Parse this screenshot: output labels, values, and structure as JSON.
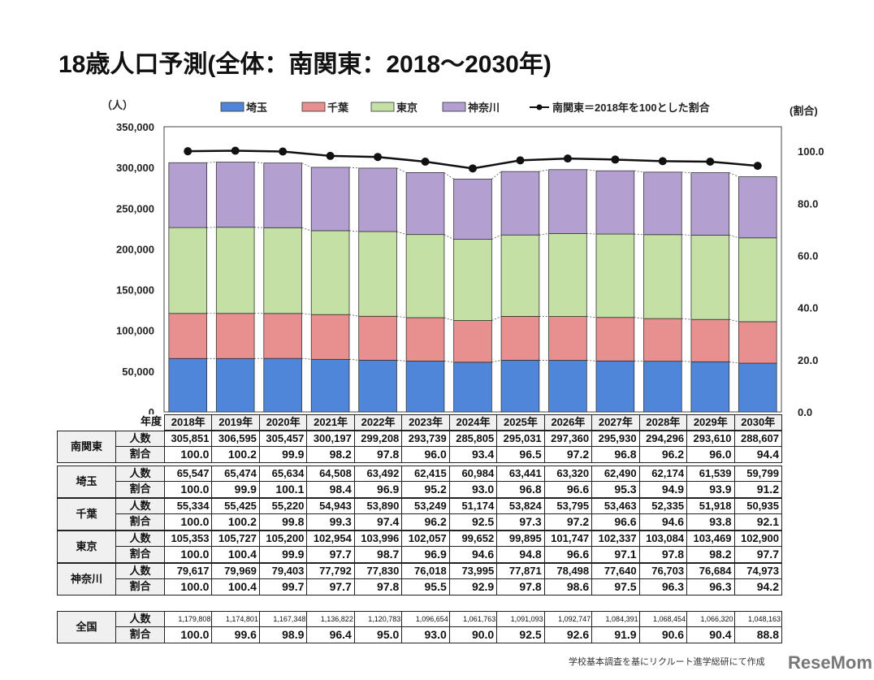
{
  "title": "18歳人口予測(全体：南関東：2018～2030年)",
  "chart_data": {
    "type": "bar",
    "stacked": true,
    "title": "18歳人口予測(全体：南関東：2018～2030年)",
    "ylabel": "（人）",
    "y2label": "(割合)",
    "ylim": [
      0,
      350000
    ],
    "y2lim": [
      0,
      109.4
    ],
    "yticks": [
      "0",
      "50,000",
      "100,000",
      "150,000",
      "200,000",
      "250,000",
      "300,000",
      "350,000"
    ],
    "y2ticks": [
      "0.0",
      "20.0",
      "40.0",
      "60.0",
      "80.0",
      "100.0"
    ],
    "legend_position": "top",
    "categories": [
      "2018年",
      "2019年",
      "2020年",
      "2021年",
      "2022年",
      "2023年",
      "2024年",
      "2025年",
      "2026年",
      "2027年",
      "2028年",
      "2029年",
      "2030年"
    ],
    "series": [
      {
        "name": "埼玉",
        "color": "#4f86d9",
        "values": [
          65547,
          65474,
          65634,
          64508,
          63492,
          62415,
          60984,
          63441,
          63320,
          62490,
          62174,
          61539,
          59799
        ]
      },
      {
        "name": "千葉",
        "color": "#e8908f",
        "values": [
          55334,
          55425,
          55220,
          54943,
          53890,
          53249,
          51174,
          53824,
          53795,
          53463,
          52335,
          51918,
          50935
        ]
      },
      {
        "name": "東京",
        "color": "#c4e0a4",
        "values": [
          105353,
          105727,
          105200,
          102954,
          103996,
          102057,
          99652,
          99895,
          101747,
          102337,
          103084,
          103469,
          102900
        ]
      },
      {
        "name": "神奈川",
        "color": "#b49fd1",
        "values": [
          79617,
          79969,
          79403,
          77792,
          77830,
          76018,
          73995,
          77871,
          78498,
          77640,
          76703,
          76684,
          74973
        ]
      }
    ],
    "line": {
      "name": "南関東＝2018年を100とした割合",
      "color": "#111111",
      "axis": "right",
      "values": [
        100.0,
        100.2,
        99.9,
        98.2,
        97.8,
        96.0,
        93.4,
        96.5,
        97.2,
        96.8,
        96.2,
        96.0,
        94.4
      ]
    }
  },
  "table": {
    "year_header": "年度",
    "count_label": "人数",
    "ratio_label": "割合",
    "rows": [
      {
        "region": "南関東",
        "counts": [
          "305,851",
          "306,595",
          "305,457",
          "300,197",
          "299,208",
          "293,739",
          "285,805",
          "295,031",
          "297,360",
          "295,930",
          "294,296",
          "293,610",
          "288,607"
        ],
        "ratios": [
          "100.0",
          "100.2",
          "99.9",
          "98.2",
          "97.8",
          "96.0",
          "93.4",
          "96.5",
          "97.2",
          "96.8",
          "96.2",
          "96.0",
          "94.4"
        ]
      },
      {
        "region": "埼玉",
        "counts": [
          "65,547",
          "65,474",
          "65,634",
          "64,508",
          "63,492",
          "62,415",
          "60,984",
          "63,441",
          "63,320",
          "62,490",
          "62,174",
          "61,539",
          "59,799"
        ],
        "ratios": [
          "100.0",
          "99.9",
          "100.1",
          "98.4",
          "96.9",
          "95.2",
          "93.0",
          "96.8",
          "96.6",
          "95.3",
          "94.9",
          "93.9",
          "91.2"
        ]
      },
      {
        "region": "千葉",
        "counts": [
          "55,334",
          "55,425",
          "55,220",
          "54,943",
          "53,890",
          "53,249",
          "51,174",
          "53,824",
          "53,795",
          "53,463",
          "52,335",
          "51,918",
          "50,935"
        ],
        "ratios": [
          "100.0",
          "100.2",
          "99.8",
          "99.3",
          "97.4",
          "96.2",
          "92.5",
          "97.3",
          "97.2",
          "96.6",
          "94.6",
          "93.8",
          "92.1"
        ]
      },
      {
        "region": "東京",
        "counts": [
          "105,353",
          "105,727",
          "105,200",
          "102,954",
          "103,996",
          "102,057",
          "99,652",
          "99,895",
          "101,747",
          "102,337",
          "103,084",
          "103,469",
          "102,900"
        ],
        "ratios": [
          "100.0",
          "100.4",
          "99.9",
          "97.7",
          "98.7",
          "96.9",
          "94.6",
          "94.8",
          "96.6",
          "97.1",
          "97.8",
          "98.2",
          "97.7"
        ]
      },
      {
        "region": "神奈川",
        "counts": [
          "79,617",
          "79,969",
          "79,403",
          "77,792",
          "77,830",
          "76,018",
          "73,995",
          "77,871",
          "78,498",
          "77,640",
          "76,703",
          "76,684",
          "74,973"
        ],
        "ratios": [
          "100.0",
          "100.4",
          "99.7",
          "97.7",
          "97.8",
          "95.5",
          "92.9",
          "97.8",
          "98.6",
          "97.5",
          "96.3",
          "96.3",
          "94.2"
        ]
      }
    ],
    "national": {
      "region": "全国",
      "counts": [
        "1,179,808",
        "1,174,801",
        "1,167,348",
        "1,136,822",
        "1,120,783",
        "1,096,654",
        "1,061,763",
        "1,091,093",
        "1,092,747",
        "1,084,391",
        "1,068,454",
        "1,066,320",
        "1,048,163"
      ],
      "ratios": [
        "100.0",
        "99.6",
        "98.9",
        "96.4",
        "95.0",
        "93.0",
        "90.0",
        "92.5",
        "92.6",
        "91.9",
        "90.6",
        "90.4",
        "88.8"
      ]
    }
  },
  "credit": "学校基本調査を基にリクルート進学総研にて作成",
  "logo": "ReseMom"
}
